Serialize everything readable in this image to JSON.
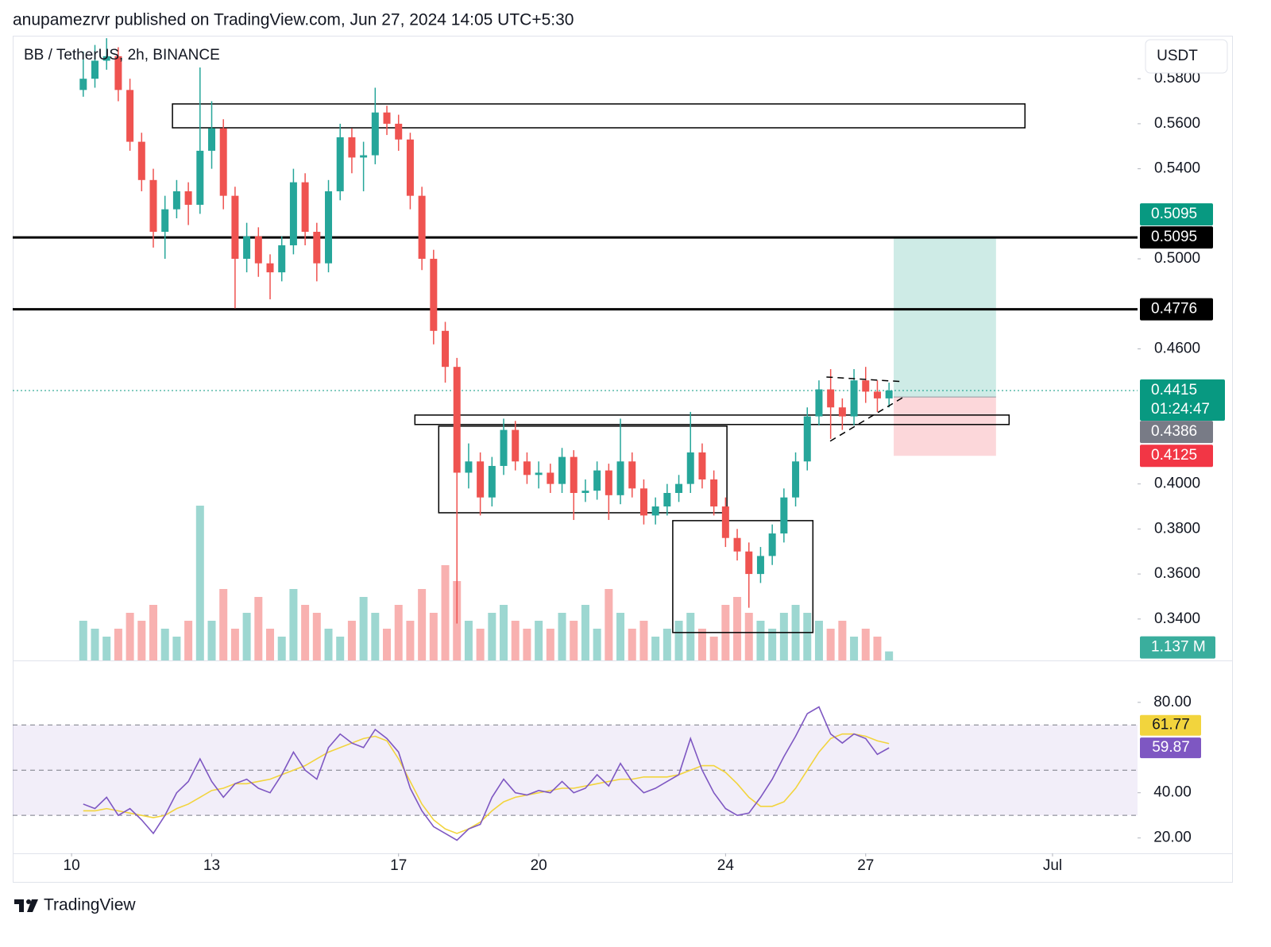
{
  "header": "anupamezrvr published on TradingView.com, Jun 27, 2024 14:05 UTC+5:30",
  "footer_brand": "TradingView",
  "chart_data": {
    "type": "candlestick",
    "title": "BB / TetherUS, 2h, BINANCE",
    "currency": "USDT",
    "colors": {
      "up": "#26a69a",
      "down": "#ef5350"
    },
    "xlim": [
      8.74,
      32.82
    ],
    "xticks": [
      10,
      13,
      17,
      20,
      24,
      27,
      {
        "value": 31,
        "label": "Jul"
      }
    ],
    "ylim": [
      0.3216,
      0.5991
    ],
    "yticks": [
      {
        "value": 0.34,
        "label": "0.3400"
      },
      {
        "value": 0.36,
        "label": "0.3600"
      },
      {
        "value": 0.38,
        "label": "0.3800"
      },
      {
        "value": 0.4,
        "label": "0.4000"
      },
      {
        "value": 0.46,
        "label": "0.4600"
      },
      {
        "value": 0.5,
        "label": "0.5000"
      },
      {
        "value": 0.54,
        "label": "0.5400"
      },
      {
        "value": 0.56,
        "label": "0.5600"
      },
      {
        "value": 0.58,
        "label": "0.5800"
      }
    ],
    "x": [
      10.25,
      10.5,
      10.75,
      11,
      11.25,
      11.5,
      11.75,
      12,
      12.25,
      12.5,
      12.75,
      13,
      13.25,
      13.5,
      13.75,
      14,
      14.25,
      14.5,
      14.75,
      15,
      15.25,
      15.5,
      15.75,
      16,
      16.25,
      16.5,
      16.75,
      17,
      17.25,
      17.5,
      17.75,
      18,
      18.25,
      18.5,
      18.75,
      19,
      19.25,
      19.5,
      19.75,
      20,
      20.25,
      20.5,
      20.75,
      21,
      21.25,
      21.5,
      21.75,
      22,
      22.25,
      22.5,
      22.75,
      23,
      23.25,
      23.5,
      23.75,
      24,
      24.25,
      24.5,
      24.75,
      25,
      25.25,
      25.5,
      25.75,
      26,
      26.25,
      26.5,
      26.75,
      27,
      27.25,
      27.5
    ],
    "ohlc": [
      [
        0.575,
        0.592,
        0.572,
        0.58
      ],
      [
        0.58,
        0.595,
        0.576,
        0.588
      ],
      [
        0.588,
        0.598,
        0.584,
        0.59
      ],
      [
        0.59,
        0.594,
        0.57,
        0.575
      ],
      [
        0.575,
        0.58,
        0.548,
        0.552
      ],
      [
        0.552,
        0.556,
        0.53,
        0.535
      ],
      [
        0.535,
        0.54,
        0.505,
        0.512
      ],
      [
        0.512,
        0.528,
        0.5,
        0.522
      ],
      [
        0.522,
        0.535,
        0.518,
        0.53
      ],
      [
        0.53,
        0.534,
        0.515,
        0.524
      ],
      [
        0.524,
        0.585,
        0.52,
        0.548
      ],
      [
        0.548,
        0.57,
        0.54,
        0.558
      ],
      [
        0.558,
        0.562,
        0.522,
        0.528
      ],
      [
        0.528,
        0.532,
        0.478,
        0.5
      ],
      [
        0.5,
        0.516,
        0.494,
        0.51
      ],
      [
        0.51,
        0.514,
        0.492,
        0.498
      ],
      [
        0.498,
        0.502,
        0.482,
        0.494
      ],
      [
        0.494,
        0.51,
        0.49,
        0.506
      ],
      [
        0.506,
        0.54,
        0.502,
        0.534
      ],
      [
        0.534,
        0.538,
        0.506,
        0.512
      ],
      [
        0.512,
        0.516,
        0.49,
        0.498
      ],
      [
        0.498,
        0.535,
        0.494,
        0.53
      ],
      [
        0.53,
        0.56,
        0.526,
        0.554
      ],
      [
        0.554,
        0.558,
        0.538,
        0.545
      ],
      [
        0.545,
        0.552,
        0.53,
        0.546
      ],
      [
        0.546,
        0.576,
        0.542,
        0.565
      ],
      [
        0.565,
        0.568,
        0.555,
        0.56
      ],
      [
        0.56,
        0.564,
        0.548,
        0.553
      ],
      [
        0.553,
        0.556,
        0.522,
        0.528
      ],
      [
        0.528,
        0.532,
        0.495,
        0.5
      ],
      [
        0.5,
        0.504,
        0.462,
        0.468
      ],
      [
        0.468,
        0.472,
        0.445,
        0.452
      ],
      [
        0.452,
        0.456,
        0.338,
        0.405
      ],
      [
        0.405,
        0.418,
        0.398,
        0.41
      ],
      [
        0.41,
        0.414,
        0.386,
        0.394
      ],
      [
        0.394,
        0.412,
        0.39,
        0.408
      ],
      [
        0.408,
        0.429,
        0.404,
        0.424
      ],
      [
        0.424,
        0.428,
        0.406,
        0.41
      ],
      [
        0.41,
        0.414,
        0.4,
        0.404
      ],
      [
        0.404,
        0.41,
        0.398,
        0.405
      ],
      [
        0.405,
        0.409,
        0.396,
        0.4
      ],
      [
        0.4,
        0.416,
        0.396,
        0.412
      ],
      [
        0.412,
        0.415,
        0.384,
        0.396
      ],
      [
        0.396,
        0.402,
        0.392,
        0.397
      ],
      [
        0.397,
        0.41,
        0.393,
        0.406
      ],
      [
        0.406,
        0.409,
        0.384,
        0.395
      ],
      [
        0.395,
        0.429,
        0.391,
        0.41
      ],
      [
        0.41,
        0.414,
        0.394,
        0.398
      ],
      [
        0.398,
        0.402,
        0.382,
        0.386
      ],
      [
        0.386,
        0.394,
        0.382,
        0.39
      ],
      [
        0.39,
        0.4,
        0.386,
        0.396
      ],
      [
        0.396,
        0.404,
        0.392,
        0.4
      ],
      [
        0.4,
        0.432,
        0.396,
        0.414
      ],
      [
        0.414,
        0.418,
        0.398,
        0.402
      ],
      [
        0.402,
        0.406,
        0.386,
        0.39
      ],
      [
        0.39,
        0.394,
        0.372,
        0.376
      ],
      [
        0.376,
        0.38,
        0.366,
        0.37
      ],
      [
        0.37,
        0.374,
        0.345,
        0.36
      ],
      [
        0.36,
        0.372,
        0.356,
        0.368
      ],
      [
        0.368,
        0.382,
        0.364,
        0.378
      ],
      [
        0.378,
        0.398,
        0.374,
        0.394
      ],
      [
        0.394,
        0.414,
        0.39,
        0.41
      ],
      [
        0.41,
        0.434,
        0.406,
        0.43
      ],
      [
        0.43,
        0.446,
        0.426,
        0.442
      ],
      [
        0.442,
        0.451,
        0.42,
        0.434
      ],
      [
        0.434,
        0.438,
        0.424,
        0.43
      ],
      [
        0.43,
        0.451,
        0.426,
        0.446
      ],
      [
        0.446,
        0.452,
        0.436,
        0.441
      ],
      [
        0.441,
        0.446,
        0.432,
        0.438
      ],
      [
        0.438,
        0.445,
        0.434,
        0.4415
      ]
    ],
    "volume": {
      "ylim": [
        0,
        30
      ],
      "last_label": "1.137 M",
      "values": [
        5,
        4,
        3,
        4,
        6,
        5,
        7,
        4,
        3,
        5,
        19.5,
        5,
        9,
        4,
        6,
        8,
        4,
        3,
        9,
        7,
        6,
        4,
        3,
        5,
        8,
        6,
        4,
        7,
        5,
        9,
        6,
        12,
        10,
        5,
        4,
        6,
        7,
        5,
        4,
        5,
        4,
        6,
        5,
        7,
        4,
        9,
        6,
        4,
        5,
        3,
        4,
        5,
        6,
        4,
        3,
        7,
        8,
        6,
        5,
        4,
        6,
        7,
        6,
        5,
        4,
        5,
        3,
        4,
        3,
        1.137
      ]
    },
    "hlines": [
      0.5095,
      0.4776
    ],
    "price_tags": [
      {
        "value": 0.5095,
        "label": "0.5095",
        "color": "#089981"
      },
      {
        "value": 0.5095,
        "label": "0.5095",
        "color": "#000000"
      },
      {
        "value": 0.4776,
        "label": "0.4776",
        "color": "#000000"
      },
      {
        "value": 0.4415,
        "label": "0.4415",
        "countdown": "01:24:47",
        "color": "#089981"
      },
      {
        "value": 0.4386,
        "label": "0.4386",
        "color": "#787b86"
      },
      {
        "value": 0.4125,
        "label": "0.4125",
        "color": "#f23645"
      }
    ],
    "position": {
      "x": [
        27.6,
        29.79
      ],
      "entry": 0.4386,
      "target": 0.5095,
      "stop": 0.4125
    },
    "boxes": [
      {
        "x": [
          12.16,
          30.41
        ],
        "y": [
          0.5582,
          0.5688
        ]
      },
      {
        "x": [
          17.35,
          30.07
        ],
        "y": [
          0.4264,
          0.4306
        ]
      },
      {
        "x": [
          17.86,
          24.03
        ],
        "y": [
          0.3872,
          0.4257
        ]
      },
      {
        "x": [
          22.87,
          25.87
        ],
        "y": [
          0.334,
          0.3837
        ]
      }
    ],
    "trendlines": [
      {
        "x": [
          26.16,
          27.82
        ],
        "y": [
          0.4475,
          0.4454
        ]
      },
      {
        "x": [
          26.24,
          27.82
        ],
        "y": [
          0.419,
          0.4387
        ]
      }
    ],
    "rsi": {
      "ylim": [
        13.2,
        98.2
      ],
      "yticks": [
        {
          "value": 20,
          "label": "20.00"
        },
        {
          "value": 40,
          "label": "40.00"
        },
        {
          "value": 80,
          "label": "80.00"
        }
      ],
      "levels": [
        70,
        50,
        30
      ],
      "series": [
        {
          "color": "#7e57c2",
          "value_label": "59.87",
          "values": [
            35,
            33,
            38,
            30,
            33,
            28,
            22,
            30,
            40,
            45,
            55,
            45,
            38,
            44,
            46,
            42,
            40,
            48,
            58,
            50,
            46,
            60,
            66,
            62,
            60,
            68,
            64,
            58,
            42,
            32,
            25,
            22,
            19,
            24,
            26,
            38,
            46,
            40,
            39,
            41,
            40,
            45,
            40,
            42,
            48,
            43,
            53,
            45,
            40,
            42,
            45,
            48,
            64,
            50,
            40,
            33,
            30,
            31,
            38,
            46,
            56,
            65,
            75,
            78,
            66,
            62,
            66,
            64,
            57,
            59.87
          ]
        },
        {
          "color": "#f2d43d",
          "value_label": "61.77",
          "values": [
            32,
            32,
            33,
            32,
            31,
            30,
            29,
            30,
            33,
            35,
            38,
            41,
            42,
            44,
            44,
            45,
            46,
            48,
            50,
            52,
            55,
            58,
            60,
            62,
            64,
            65,
            63,
            55,
            45,
            35,
            28,
            24,
            22,
            24,
            27,
            32,
            36,
            38,
            39,
            40,
            41,
            42,
            42,
            43,
            44,
            45,
            46,
            46,
            47,
            47,
            47,
            48,
            50,
            52,
            52,
            49,
            44,
            38,
            34,
            34,
            36,
            42,
            50,
            58,
            64,
            66,
            66,
            65,
            63,
            61.77
          ]
        }
      ]
    }
  }
}
